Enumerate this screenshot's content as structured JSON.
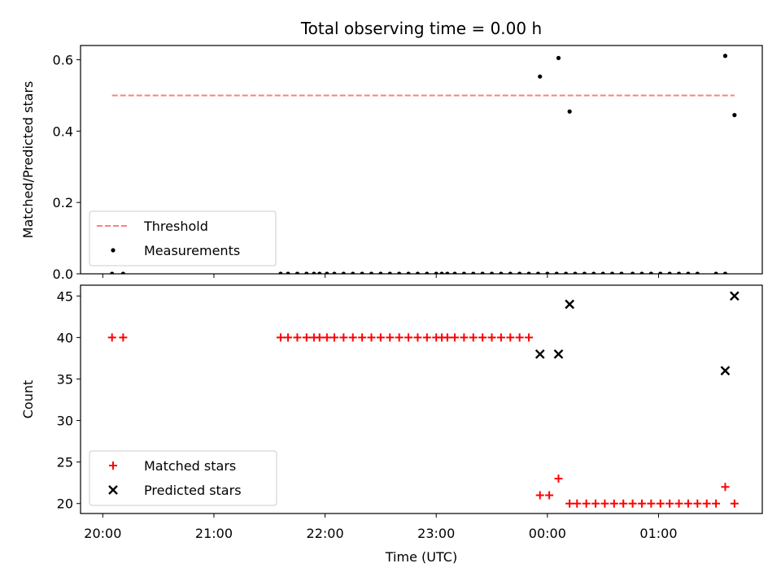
{
  "chart_data": {
    "title": "Total observing time = 0.00 h",
    "xlabel": "Time (UTC)",
    "x_ticks": [
      {
        "t": 0,
        "label": "20:00"
      },
      {
        "t": 60,
        "label": "21:00"
      },
      {
        "t": 120,
        "label": "22:00"
      },
      {
        "t": 180,
        "label": "23:00"
      },
      {
        "t": 240,
        "label": "00:00"
      },
      {
        "t": 300,
        "label": "01:00"
      }
    ],
    "x_range": [
      -12,
      356
    ],
    "panels": [
      {
        "type": "scatter",
        "ylabel": "Matched/Predicted stars",
        "ylim": [
          0,
          0.64
        ],
        "y_ticks": [
          {
            "v": 0,
            "label": "0.0"
          },
          {
            "v": 0.2,
            "label": "0.2"
          },
          {
            "v": 0.4,
            "label": "0.4"
          },
          {
            "v": 0.6,
            "label": "0.6"
          }
        ],
        "legend_location": "lower-left",
        "threshold": {
          "name": "Threshold",
          "value": 0.5,
          "x_range": [
            5,
            341
          ],
          "color": "#ff7f7f"
        },
        "series": [
          {
            "name": "Measurements",
            "marker": "dot",
            "color": "#000000",
            "x": [
              5,
              11,
              96,
              100,
              105,
              110,
              114,
              117,
              121,
              125,
              130,
              135,
              140,
              145,
              150,
              155,
              160,
              165,
              170,
              175,
              180,
              183,
              186,
              190,
              195,
              200,
              205,
              210,
              215,
              220,
              225,
              230,
              235,
              240,
              245,
              250,
              255,
              260,
              265,
              270,
              275,
              280,
              286,
              291,
              296,
              301,
              306,
              311,
              316,
              321,
              331,
              336
            ],
            "y": [
              0,
              0,
              0,
              0,
              0,
              0,
              0,
              0,
              0,
              0,
              0,
              0,
              0,
              0,
              0,
              0,
              0,
              0,
              0,
              0,
              0,
              0,
              0,
              0,
              0,
              0,
              0,
              0,
              0,
              0,
              0,
              0,
              0,
              0,
              0,
              0,
              0,
              0,
              0,
              0,
              0,
              0,
              0,
              0,
              0,
              0,
              0,
              0,
              0,
              0,
              0,
              0
            ]
          },
          {
            "name": "",
            "marker": "dot",
            "color": "#000000",
            "x": [
              236,
              246,
              252,
              336,
              341
            ],
            "y": [
              0.553,
              0.605,
              0.455,
              0.611,
              0.445
            ]
          }
        ]
      },
      {
        "type": "scatter",
        "ylabel": "Count",
        "ylim": [
          18.8,
          46.3
        ],
        "y_ticks": [
          {
            "v": 20,
            "label": "20"
          },
          {
            "v": 25,
            "label": "25"
          },
          {
            "v": 30,
            "label": "30"
          },
          {
            "v": 35,
            "label": "35"
          },
          {
            "v": 40,
            "label": "40"
          },
          {
            "v": 45,
            "label": "45"
          }
        ],
        "legend_location": "lower-left",
        "series": [
          {
            "name": "Matched stars",
            "marker": "plus",
            "color": "#ff0000",
            "x": [
              5,
              11,
              96,
              100,
              105,
              110,
              114,
              117,
              121,
              125,
              130,
              135,
              140,
              145,
              150,
              155,
              160,
              165,
              170,
              175,
              180,
              183,
              186,
              190,
              195,
              200,
              205,
              210,
              215,
              220,
              225,
              230,
              236,
              241,
              246,
              252,
              256,
              261,
              266,
              271,
              276,
              281,
              286,
              291,
              296,
              301,
              306,
              311,
              316,
              321,
              326,
              331,
              336,
              341
            ],
            "y": [
              40,
              40,
              40,
              40,
              40,
              40,
              40,
              40,
              40,
              40,
              40,
              40,
              40,
              40,
              40,
              40,
              40,
              40,
              40,
              40,
              40,
              40,
              40,
              40,
              40,
              40,
              40,
              40,
              40,
              40,
              40,
              40,
              21,
              21,
              23,
              20,
              20,
              20,
              20,
              20,
              20,
              20,
              20,
              20,
              20,
              20,
              20,
              20,
              20,
              20,
              20,
              20,
              22,
              20
            ]
          },
          {
            "name": "Predicted stars",
            "marker": "x",
            "color": "#000000",
            "x": [
              236,
              246,
              252,
              336,
              341
            ],
            "y": [
              38,
              38,
              44,
              36,
              45
            ]
          }
        ]
      }
    ]
  }
}
